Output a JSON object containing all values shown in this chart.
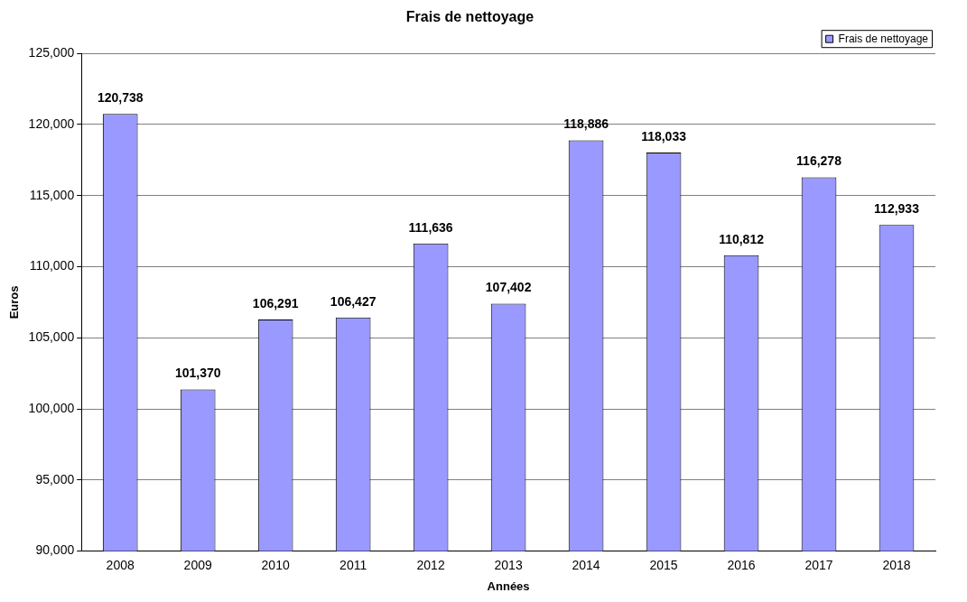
{
  "chart_data": {
    "type": "bar",
    "title": "Frais de nettoyage",
    "xlabel": "Années",
    "ylabel": "Euros",
    "categories": [
      "2008",
      "2009",
      "2010",
      "2011",
      "2012",
      "2013",
      "2014",
      "2015",
      "2016",
      "2017",
      "2018"
    ],
    "series": [
      {
        "name": "Frais de nettoyage",
        "color": "#9999ff",
        "values": [
          120738,
          101370,
          106291,
          106427,
          111636,
          107402,
          118886,
          118033,
          110812,
          116278,
          112933
        ],
        "value_labels": [
          "120,738",
          "101,370",
          "106,291",
          "106,427",
          "111,636",
          "107,402",
          "118,886",
          "118,033",
          "110,812",
          "116,278",
          "112,933"
        ]
      }
    ],
    "ylim": [
      90000,
      125000
    ],
    "yticks": [
      {
        "value": 90000,
        "label": "90,000"
      },
      {
        "value": 95000,
        "label": "95,000"
      },
      {
        "value": 100000,
        "label": "100,000"
      },
      {
        "value": 105000,
        "label": "105,000"
      },
      {
        "value": 110000,
        "label": "110,000"
      },
      {
        "value": 115000,
        "label": "115,000"
      },
      {
        "value": 120000,
        "label": "120,000"
      },
      {
        "value": 125000,
        "label": "125,000"
      }
    ],
    "grid": "y",
    "legend": "top right"
  }
}
